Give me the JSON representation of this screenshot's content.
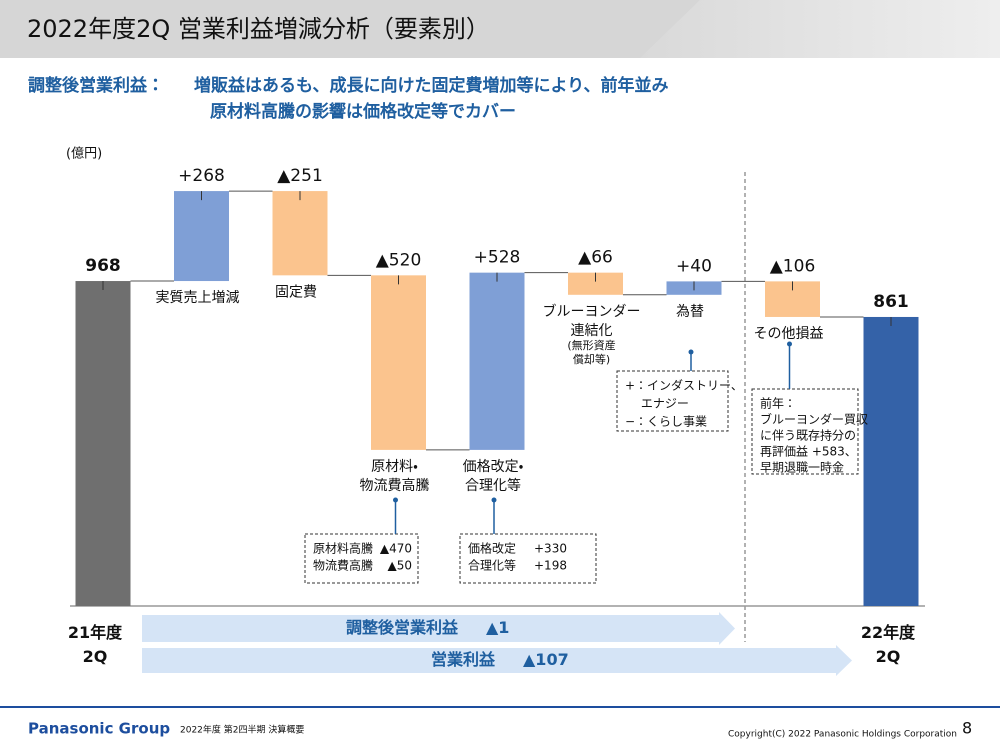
{
  "header": {
    "title": "2022年度2Q  営業利益増減分析（要素別）"
  },
  "subtitle": {
    "label": "調整後営業利益：",
    "lines": [
      "増販益はあるも、成長に向けた固定費増加等により、前年並み",
      "原材料高騰の影響は価格改定等でカバー"
    ]
  },
  "chart_data": {
    "type": "waterfall",
    "unit": "(億円)",
    "categories": [
      "21年度\n2Q",
      "実質売上増減",
      "固定費",
      "原材料・\n物流費高騰",
      "価格改定・\n合理化等",
      "ブルーヨンダー\n連結化",
      "為替",
      "その他損益",
      "22年度\n2Q"
    ],
    "values": [
      968,
      268,
      -251,
      -520,
      528,
      -66,
      40,
      -106,
      861
    ],
    "value_labels": [
      "968",
      "+268",
      "▲251",
      "▲520",
      "+528",
      "▲66",
      "+40",
      "▲106",
      "861"
    ],
    "colors": {
      "start": "#6f6f6f",
      "increase": "#7f9fd6",
      "decrease": "#fbc48e",
      "end": "#3462a8"
    },
    "category_notes": [
      {
        "category": 5,
        "text": "(無形資産\n償却等)"
      }
    ],
    "annotations": [
      {
        "category": 3,
        "rows": [
          [
            "原材料高騰",
            "▲470"
          ],
          [
            "物流費高騰",
            "▲50"
          ]
        ]
      },
      {
        "category": 4,
        "rows": [
          [
            "価格改定",
            "+330"
          ],
          [
            "合理化等",
            "+198"
          ]
        ]
      },
      {
        "category": 6,
        "rows": [
          [
            "+：インダストリー、"
          ],
          [
            "　 エナジー"
          ],
          [
            "−：くらし事業"
          ]
        ]
      },
      {
        "category": 7,
        "rows": [
          [
            "前年："
          ],
          [
            "ブルーヨンダー買収"
          ],
          [
            "に伴う既存持分の"
          ],
          [
            "再評価益 +583、"
          ],
          [
            "早期退職一時金"
          ]
        ]
      }
    ],
    "bands": [
      {
        "label": "調整後営業利益",
        "value_label": "▲1"
      },
      {
        "label": "営業利益",
        "value_label": "▲107"
      }
    ]
  },
  "footer": {
    "brand": "Panasonic Group",
    "doc": "2022年度 第2四半期 決算概要",
    "copyright": "Copyright(C) 2022 Panasonic Holdings Corporation",
    "page": "8"
  }
}
